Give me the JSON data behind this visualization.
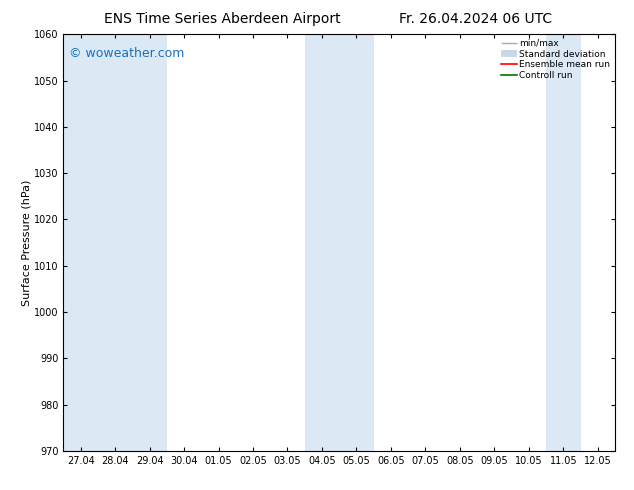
{
  "title": "ENS Time Series Aberdeen Airport",
  "title_right": "Fr. 26.04.2024 06 UTC",
  "ylabel": "Surface Pressure (hPa)",
  "watermark": "© woweather.com",
  "ylim": [
    970,
    1060
  ],
  "yticks": [
    970,
    980,
    990,
    1000,
    1010,
    1020,
    1030,
    1040,
    1050,
    1060
  ],
  "x_labels": [
    "27.04",
    "28.04",
    "29.04",
    "30.04",
    "01.05",
    "02.05",
    "03.05",
    "04.05",
    "05.05",
    "06.05",
    "07.05",
    "08.05",
    "09.05",
    "10.05",
    "11.05",
    "12.05"
  ],
  "shaded_cols": [
    0,
    1,
    2,
    7,
    8,
    14
  ],
  "band_color": "#dce9f5",
  "bg_color": "#ffffff",
  "legend_labels": [
    "min/max",
    "Standard deviation",
    "Ensemble mean run",
    "Controll run"
  ],
  "legend_line_color": "#aaaaaa",
  "legend_std_color": "#c8d8e8",
  "legend_ens_color": "#ff0000",
  "legend_ctrl_color": "#007700",
  "title_fontsize": 10,
  "ylabel_fontsize": 8,
  "tick_labelsize": 7,
  "watermark_color": "#1a70c0",
  "watermark_fontsize": 9
}
